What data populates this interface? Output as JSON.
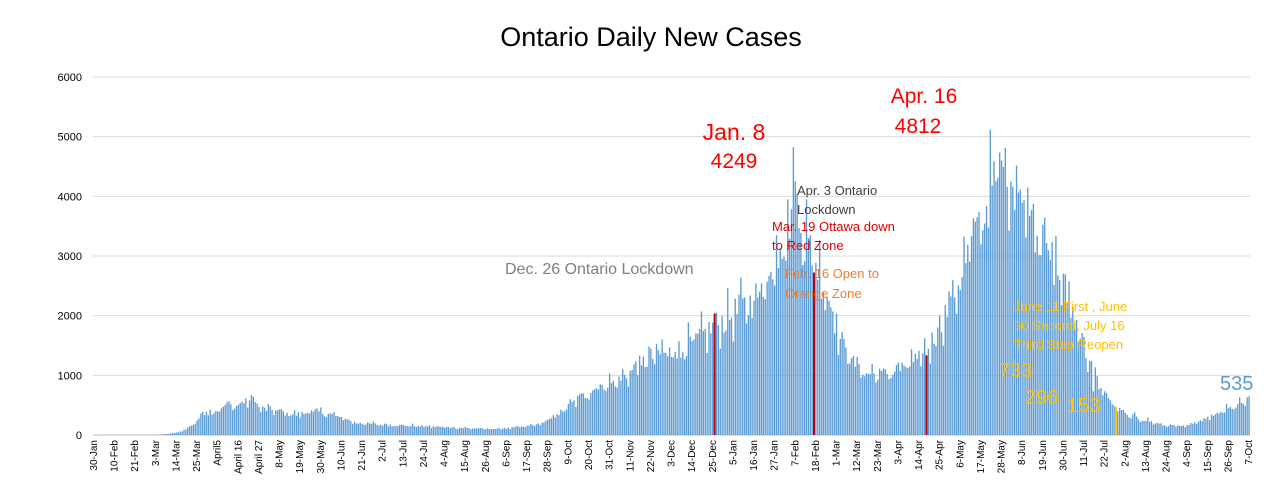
{
  "chart_data": {
    "type": "bar",
    "title": "Ontario Daily New Cases",
    "ylim": [
      0,
      6000
    ],
    "yticks": [
      0,
      1000,
      2000,
      3000,
      4000,
      5000,
      6000
    ],
    "grid": true,
    "bar_color": "#5b9bd5",
    "x_tick_labels": [
      "30-Jan",
      "10-Feb",
      "21-Feb",
      "3-Mar",
      "14-Mar",
      "25-Mar",
      "April5",
      "April 16",
      "April 27",
      "8-May",
      "19-May",
      "30-May",
      "10-Jun",
      "21-Jun",
      "2-Jul",
      "13-Jul",
      "24-Jul",
      "4-Aug",
      "15-Aug",
      "26-Aug",
      "6-Sep",
      "17-Sep",
      "28-Sep",
      "9-Oct",
      "20-Oct",
      "31-Oct",
      "11-Nov",
      "22-Nov",
      "3-Dec",
      "14-Dec",
      "25-Dec",
      "5-Jan",
      "16-Jan",
      "27-Jan",
      "7-Feb",
      "18-Feb",
      "1-Mar",
      "12-Mar",
      "23-Mar",
      "3-Apr",
      "14-Apr",
      "25-Apr",
      "6-May",
      "17-May",
      "28-May",
      "8-Jun",
      "19-Jun",
      "30-Jun",
      "11-Jul",
      "22-Jul",
      "2-Aug",
      "13-Aug",
      "24-Aug",
      "4-Sep",
      "15-Sep",
      "26-Sep",
      "7-Oct"
    ],
    "x_tick_interval_days": 11,
    "series": [
      {
        "values_keyframes_day_value": [
          [
            0,
            0
          ],
          [
            20,
            2
          ],
          [
            35,
            5
          ],
          [
            45,
            40
          ],
          [
            52,
            150
          ],
          [
            60,
            420
          ],
          [
            65,
            380
          ],
          [
            70,
            500
          ],
          [
            75,
            480
          ],
          [
            82,
            560
          ],
          [
            85,
            620
          ],
          [
            88,
            450
          ],
          [
            95,
            420
          ],
          [
            100,
            380
          ],
          [
            108,
            340
          ],
          [
            118,
            400
          ],
          [
            128,
            330
          ],
          [
            140,
            200
          ],
          [
            150,
            180
          ],
          [
            165,
            160
          ],
          [
            180,
            140
          ],
          [
            195,
            120
          ],
          [
            210,
            100
          ],
          [
            220,
            110
          ],
          [
            230,
            140
          ],
          [
            240,
            200
          ],
          [
            250,
            400
          ],
          [
            260,
            650
          ],
          [
            270,
            820
          ],
          [
            280,
            900
          ],
          [
            290,
            1150
          ],
          [
            300,
            1350
          ],
          [
            310,
            1400
          ],
          [
            320,
            1550
          ],
          [
            330,
            1800
          ],
          [
            340,
            2000
          ],
          [
            350,
            2200
          ],
          [
            360,
            2600
          ],
          [
            365,
            3000
          ],
          [
            370,
            3600
          ],
          [
            374,
            4000
          ],
          [
            378,
            3300
          ],
          [
            385,
            2900
          ],
          [
            392,
            2300
          ],
          [
            398,
            1600
          ],
          [
            403,
            1300
          ],
          [
            410,
            1050
          ],
          [
            420,
            1000
          ],
          [
            430,
            1100
          ],
          [
            440,
            1250
          ],
          [
            446,
            1500
          ],
          [
            452,
            1900
          ],
          [
            458,
            2300
          ],
          [
            465,
            2900
          ],
          [
            472,
            3500
          ],
          [
            478,
            4100
          ],
          [
            484,
            4500
          ],
          [
            487,
            4600
          ],
          [
            490,
            4300
          ],
          [
            496,
            3900
          ],
          [
            503,
            3500
          ],
          [
            510,
            3000
          ],
          [
            517,
            2500
          ],
          [
            524,
            1900
          ],
          [
            530,
            1300
          ],
          [
            535,
            900
          ],
          [
            540,
            650
          ],
          [
            545,
            450
          ],
          [
            551,
            340
          ],
          [
            557,
            280
          ],
          [
            563,
            230
          ],
          [
            570,
            170
          ],
          [
            576,
            155
          ],
          [
            582,
            150
          ],
          [
            590,
            220
          ],
          [
            598,
            330
          ],
          [
            605,
            430
          ],
          [
            612,
            520
          ],
          [
            620,
            650
          ],
          [
            628,
            750
          ],
          [
            636,
            700
          ],
          [
            644,
            640
          ],
          [
            652,
            600
          ],
          [
            660,
            620
          ],
          [
            665,
            600
          ],
          [
            670,
            540
          ]
        ],
        "spike_points_day_value": [
          [
            344,
            2350
          ],
          [
            364,
            3350
          ],
          [
            374,
            4249
          ],
          [
            380,
            3950
          ],
          [
            486,
            4812
          ],
          [
            501,
            3870
          ],
          [
            533,
            733
          ],
          [
            552,
            296
          ],
          [
            570,
            153
          ],
          [
            665,
            535
          ]
        ]
      }
    ],
    "markers": [
      {
        "day": 331,
        "color": "#c00000"
      },
      {
        "day": 384,
        "color": "#c00000"
      },
      {
        "day": 444,
        "color": "#c00000"
      },
      {
        "day": 545,
        "color": "#ffc000"
      }
    ],
    "annotations": [
      {
        "id": "jan8-date",
        "text": "Jan. 8",
        "color": "#ff0000"
      },
      {
        "id": "jan8-value",
        "text": "4249",
        "color": "#ff0000"
      },
      {
        "id": "apr16-date",
        "text": "Apr. 16",
        "color": "#ff0000"
      },
      {
        "id": "apr16-value",
        "text": "4812",
        "color": "#ff0000"
      },
      {
        "id": "dec26",
        "text": "Dec. 26 Ontario Lockdown",
        "color": "#7f7f7f"
      },
      {
        "id": "apr3-line1",
        "text": "Apr. 3 Ontario",
        "color": "#404040"
      },
      {
        "id": "apr3-line2",
        "text": "Lockdown",
        "color": "#404040"
      },
      {
        "id": "mar19-line1",
        "text": "Mar. 19 Ottawa down",
        "color": "#e00000"
      },
      {
        "id": "mar19-line2",
        "text": "to Red Zone",
        "color": "#e00000"
      },
      {
        "id": "feb16-line1",
        "text": "Feb. 16 Open to",
        "color": "#ed7d31"
      },
      {
        "id": "feb16-line2",
        "text": "Orange Zone",
        "color": "#ed7d31"
      },
      {
        "id": "june-line1",
        "text": "June 11 First , June",
        "color": "#ffc000"
      },
      {
        "id": "june-line2",
        "text": "30 Second, July 16",
        "color": "#ffc000"
      },
      {
        "id": "june-line3",
        "text": "Third Step Reopen",
        "color": "#ffc000"
      },
      {
        "id": "val-733",
        "text": "733",
        "color": "#ffc000"
      },
      {
        "id": "val-296",
        "text": "296",
        "color": "#ffc000"
      },
      {
        "id": "val-153",
        "text": "153",
        "color": "#ffc000"
      },
      {
        "id": "val-535",
        "text": "535",
        "color": "#5b9bd5"
      }
    ]
  }
}
